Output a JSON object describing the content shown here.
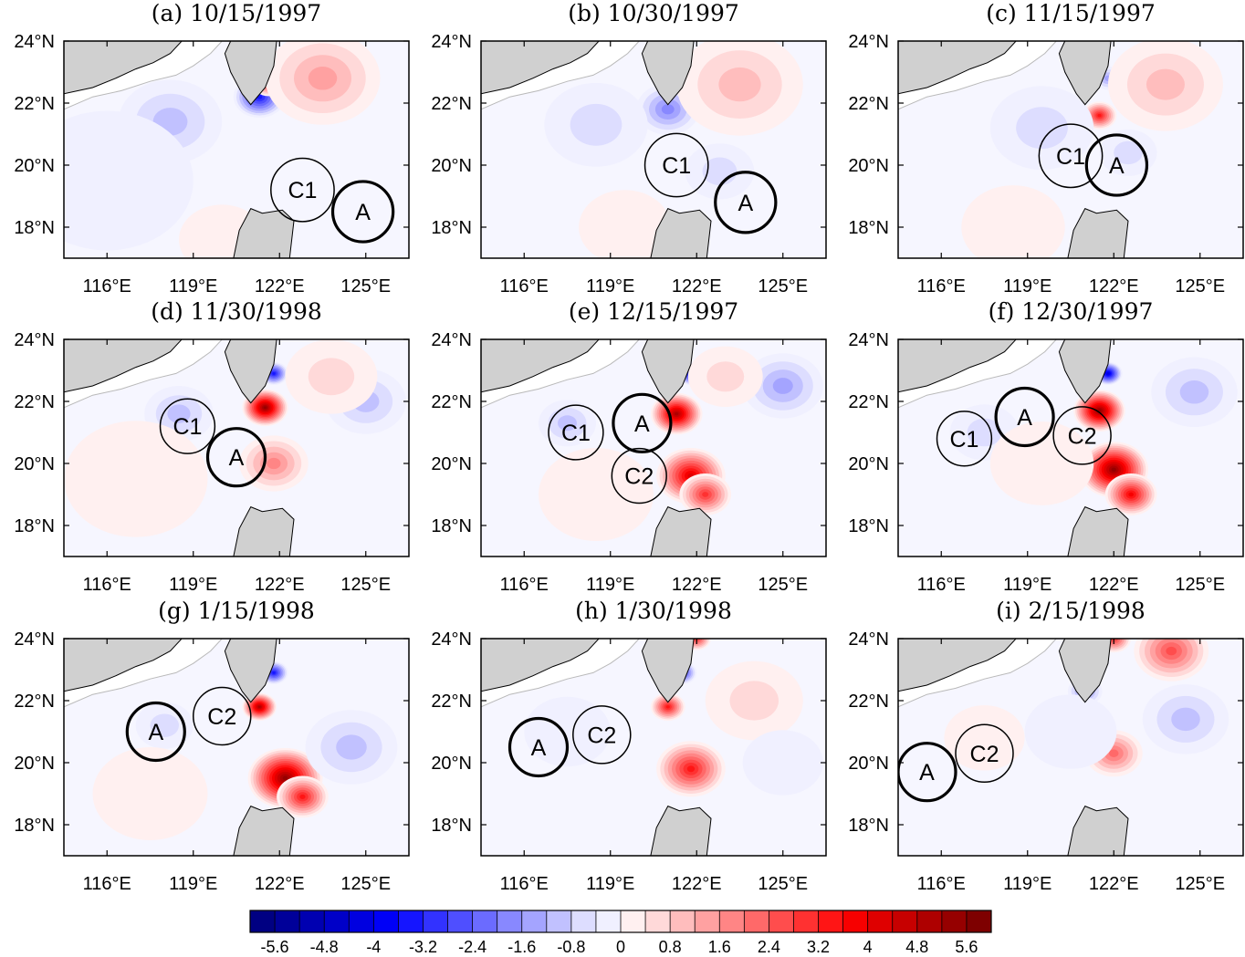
{
  "panels": [
    {
      "title": "(a)  10/15/1997",
      "eddies": [
        {
          "label": "C1",
          "lon": 122.8,
          "lat": 19.2,
          "r": 1.1,
          "bold": false
        },
        {
          "label": "A",
          "lon": 124.9,
          "lat": 18.5,
          "r": 1.05,
          "bold": true
        }
      ],
      "blobs": [
        {
          "lon": 121.3,
          "lat": 22.2,
          "s": 0.9,
          "v": -3.6
        },
        {
          "lon": 121.6,
          "lat": 22.6,
          "s": 0.5,
          "v": 2.8
        },
        {
          "lon": 123.5,
          "lat": 22.8,
          "s": 2.0,
          "v": 1.6
        },
        {
          "lon": 118.2,
          "lat": 21.4,
          "s": 1.8,
          "v": -1.0
        },
        {
          "lon": 120.0,
          "lat": 17.6,
          "s": 1.5,
          "v": 0.6
        },
        {
          "lon": 116,
          "lat": 19.5,
          "s": 3.0,
          "v": -0.4
        }
      ]
    },
    {
      "title": "(b)  10/30/1997",
      "eddies": [
        {
          "label": "C1",
          "lon": 121.3,
          "lat": 20.0,
          "r": 1.1,
          "bold": false
        },
        {
          "label": "A",
          "lon": 123.7,
          "lat": 18.8,
          "r": 1.05,
          "bold": true
        }
      ],
      "blobs": [
        {
          "lon": 121.0,
          "lat": 21.8,
          "s": 1.1,
          "v": -1.8
        },
        {
          "lon": 123.5,
          "lat": 22.6,
          "s": 2.2,
          "v": 1.4
        },
        {
          "lon": 118.5,
          "lat": 21.3,
          "s": 1.8,
          "v": -0.8
        },
        {
          "lon": 119.5,
          "lat": 18.0,
          "s": 1.6,
          "v": 0.6
        },
        {
          "lon": 122.8,
          "lat": 19.8,
          "s": 1.2,
          "v": -0.9
        }
      ]
    },
    {
      "title": "(c)  11/15/1997",
      "eddies": [
        {
          "label": "C1",
          "lon": 120.5,
          "lat": 20.3,
          "r": 1.1,
          "bold": false
        },
        {
          "label": "A",
          "lon": 122.1,
          "lat": 20.0,
          "r": 1.05,
          "bold": true
        }
      ],
      "blobs": [
        {
          "lon": 121.5,
          "lat": 21.6,
          "s": 0.6,
          "v": 3.4
        },
        {
          "lon": 121.8,
          "lat": 22.8,
          "s": 0.5,
          "v": -1.6
        },
        {
          "lon": 123.8,
          "lat": 22.6,
          "s": 2.0,
          "v": 1.4
        },
        {
          "lon": 119.5,
          "lat": 21.2,
          "s": 1.8,
          "v": -0.8
        },
        {
          "lon": 122.5,
          "lat": 20.4,
          "s": 1.0,
          "v": -0.9
        },
        {
          "lon": 118.5,
          "lat": 18.0,
          "s": 1.8,
          "v": 0.3
        }
      ]
    },
    {
      "title": "(d)  11/30/1998",
      "eddies": [
        {
          "label": "C1",
          "lon": 118.8,
          "lat": 21.2,
          "r": 0.95,
          "bold": false
        },
        {
          "label": "A",
          "lon": 120.5,
          "lat": 20.2,
          "r": 1.0,
          "bold": true
        }
      ],
      "blobs": [
        {
          "lon": 121.5,
          "lat": 21.8,
          "s": 0.8,
          "v": 5.6
        },
        {
          "lon": 121.8,
          "lat": 22.9,
          "s": 0.5,
          "v": -3.6
        },
        {
          "lon": 121.8,
          "lat": 20.0,
          "s": 1.2,
          "v": 2.0
        },
        {
          "lon": 118.5,
          "lat": 21.6,
          "s": 1.2,
          "v": -1.2
        },
        {
          "lon": 125.0,
          "lat": 22.0,
          "s": 1.4,
          "v": -1.0
        },
        {
          "lon": 123.8,
          "lat": 22.8,
          "s": 1.6,
          "v": 0.8
        },
        {
          "lon": 117,
          "lat": 19.5,
          "s": 2.5,
          "v": 0.3
        }
      ]
    },
    {
      "title": "(e)  12/15/1997",
      "eddies": [
        {
          "label": "C1",
          "lon": 117.8,
          "lat": 21.0,
          "r": 0.95,
          "bold": false
        },
        {
          "label": "A",
          "lon": 120.1,
          "lat": 21.3,
          "r": 1.0,
          "bold": true
        },
        {
          "label": "C2",
          "lon": 120.0,
          "lat": 19.6,
          "r": 0.95,
          "bold": false
        }
      ],
      "blobs": [
        {
          "lon": 121.3,
          "lat": 21.6,
          "s": 0.9,
          "v": 5.2
        },
        {
          "lon": 121.8,
          "lat": 22.9,
          "s": 0.5,
          "v": -4.0
        },
        {
          "lon": 121.8,
          "lat": 19.6,
          "s": 1.2,
          "v": 4.4
        },
        {
          "lon": 122.3,
          "lat": 19.0,
          "s": 0.9,
          "v": 3.0
        },
        {
          "lon": 125.0,
          "lat": 22.5,
          "s": 1.4,
          "v": -1.6
        },
        {
          "lon": 123.0,
          "lat": 22.8,
          "s": 1.3,
          "v": 0.8
        },
        {
          "lon": 117.5,
          "lat": 21.3,
          "s": 1.0,
          "v": -1.0
        },
        {
          "lon": 118.5,
          "lat": 19.0,
          "s": 2.0,
          "v": 0.5
        }
      ]
    },
    {
      "title": "(f)  12/30/1997",
      "eddies": [
        {
          "label": "C1",
          "lon": 116.8,
          "lat": 20.8,
          "r": 0.95,
          "bold": false
        },
        {
          "label": "A",
          "lon": 118.9,
          "lat": 21.5,
          "r": 1.0,
          "bold": true
        },
        {
          "label": "C2",
          "lon": 120.9,
          "lat": 20.9,
          "r": 1.0,
          "bold": false
        }
      ],
      "blobs": [
        {
          "lon": 121.5,
          "lat": 21.7,
          "s": 0.9,
          "v": 5.6
        },
        {
          "lon": 121.8,
          "lat": 22.9,
          "s": 0.5,
          "v": -4.4
        },
        {
          "lon": 122.0,
          "lat": 19.8,
          "s": 1.2,
          "v": 5.6
        },
        {
          "lon": 122.6,
          "lat": 19.0,
          "s": 0.9,
          "v": 4.0
        },
        {
          "lon": 124.8,
          "lat": 22.3,
          "s": 1.5,
          "v": -1.4
        },
        {
          "lon": 117.5,
          "lat": 21.0,
          "s": 1.2,
          "v": -0.8
        },
        {
          "lon": 119.5,
          "lat": 20.0,
          "s": 1.8,
          "v": 0.6
        }
      ]
    },
    {
      "title": "(g)  1/15/1998",
      "eddies": [
        {
          "label": "A",
          "lon": 117.7,
          "lat": 21.0,
          "r": 1.0,
          "bold": true
        },
        {
          "label": "C2",
          "lon": 120.0,
          "lat": 21.5,
          "r": 1.0,
          "bold": false
        }
      ],
      "blobs": [
        {
          "lon": 121.3,
          "lat": 21.8,
          "s": 0.6,
          "v": 5.2
        },
        {
          "lon": 121.8,
          "lat": 22.9,
          "s": 0.5,
          "v": -3.6
        },
        {
          "lon": 122.2,
          "lat": 19.5,
          "s": 1.3,
          "v": 5.6
        },
        {
          "lon": 122.8,
          "lat": 18.9,
          "s": 0.9,
          "v": 3.4
        },
        {
          "lon": 124.5,
          "lat": 20.5,
          "s": 1.6,
          "v": -1.0
        },
        {
          "lon": 118.0,
          "lat": 21.2,
          "s": 1.0,
          "v": -0.9
        },
        {
          "lon": 117.5,
          "lat": 19.0,
          "s": 2.0,
          "v": 0.3
        }
      ]
    },
    {
      "title": "(h)  1/30/1998",
      "eddies": [
        {
          "label": "A",
          "lon": 116.5,
          "lat": 20.5,
          "r": 1.0,
          "bold": true
        },
        {
          "label": "C2",
          "lon": 118.7,
          "lat": 20.9,
          "r": 1.0,
          "bold": false
        }
      ],
      "blobs": [
        {
          "lon": 121.0,
          "lat": 21.8,
          "s": 0.6,
          "v": 3.6
        },
        {
          "lon": 121.5,
          "lat": 22.9,
          "s": 0.5,
          "v": -3.2
        },
        {
          "lon": 121.8,
          "lat": 19.8,
          "s": 1.2,
          "v": 3.8
        },
        {
          "lon": 122.0,
          "lat": 24.0,
          "s": 0.5,
          "v": 3.0
        },
        {
          "lon": 124.0,
          "lat": 22.0,
          "s": 1.7,
          "v": 0.9
        },
        {
          "lon": 117.5,
          "lat": 21.0,
          "s": 1.5,
          "v": -0.6
        },
        {
          "lon": 125.0,
          "lat": 20.0,
          "s": 1.4,
          "v": -0.6
        }
      ]
    },
    {
      "title": "(i)  2/15/1998",
      "eddies": [
        {
          "label": "A",
          "lon": 115.5,
          "lat": 19.7,
          "r": 1.0,
          "bold": true
        },
        {
          "label": "C2",
          "lon": 117.5,
          "lat": 20.3,
          "r": 1.0,
          "bold": false
        }
      ],
      "blobs": [
        {
          "lon": 124.0,
          "lat": 23.6,
          "s": 1.3,
          "v": 2.6
        },
        {
          "lon": 122.0,
          "lat": 24.0,
          "s": 0.6,
          "v": 3.0
        },
        {
          "lon": 122.0,
          "lat": 20.3,
          "s": 1.0,
          "v": 2.2
        },
        {
          "lon": 121.0,
          "lat": 22.3,
          "s": 0.6,
          "v": -1.8
        },
        {
          "lon": 124.5,
          "lat": 21.4,
          "s": 1.5,
          "v": -1.1
        },
        {
          "lon": 120.5,
          "lat": 21.0,
          "s": 1.6,
          "v": -0.6
        },
        {
          "lon": 117.5,
          "lat": 20.8,
          "s": 1.4,
          "v": 0.4
        }
      ]
    }
  ],
  "axes": {
    "lon_ticks": [
      116,
      119,
      122,
      125
    ],
    "lat_ticks": [
      18,
      20,
      22,
      24
    ],
    "lon_labels": [
      "116°E",
      "119°E",
      "122°E",
      "125°E"
    ],
    "lat_labels": [
      "18°N",
      "20°N",
      "22°N",
      "24°N"
    ],
    "lon_range": [
      114.5,
      126.5
    ],
    "lat_range": [
      17.0,
      24.0
    ]
  },
  "colorbar": {
    "labels": [
      "-5.6",
      "-4.8",
      "-4",
      "-3.2",
      "-2.4",
      "-1.6",
      "-0.8",
      "0",
      "0.8",
      "1.6",
      "2.4",
      "3.2",
      "4",
      "4.8",
      "5.6"
    ],
    "min": -6.0,
    "max": 6.0,
    "step": 0.4
  }
}
